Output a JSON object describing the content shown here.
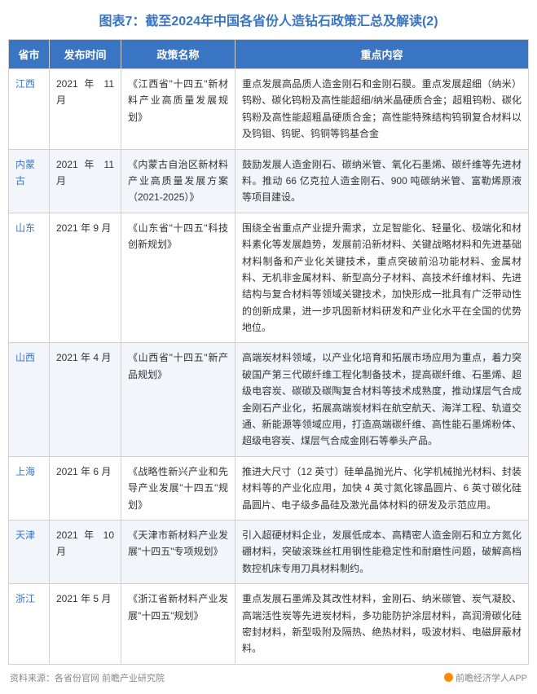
{
  "title": "图表7：截至2024年中国各省份人造钻石政策汇总及解读(2)",
  "columns": [
    "省市",
    "发布时间",
    "政策名称",
    "重点内容"
  ],
  "column_widths": [
    "50px",
    "88px",
    "140px",
    "auto"
  ],
  "header_bg": "#3a75c4",
  "header_color": "#ffffff",
  "row_even_bg": "#f2f6fb",
  "row_odd_bg": "#ffffff",
  "title_color": "#3a75c4",
  "province_color": "#3a75c4",
  "rows": [
    {
      "province": "江西",
      "date": "2021 年 11 月",
      "policy": "《江西省\"十四五\"新材料产业高质量发展规划》",
      "content": "重点发展高品质人造金刚石和金刚石膜。重点发展超细（纳米）钨粉、碳化钨粉及高性能超细/纳米晶硬质合金；超粗钨粉、碳化钨粉及高性能超粗晶硬质合金；高性能特殊结构钨钢复合材料以及钨钼、钨铌、钨铜等钨基合金"
    },
    {
      "province": "内蒙古",
      "date": "2021 年 11 月",
      "policy": "《内蒙古自治区新材料产业高质量发展方案（2021-2025）》",
      "content": "鼓励发展人造金刚石、碳纳米管、氧化石墨烯、碳纤维等先进材料。推动 66 亿克拉人造金刚石、900 吨碳纳米管、富勒烯原液等项目建设。"
    },
    {
      "province": "山东",
      "date": "2021 年 9 月",
      "policy": "《山东省\"十四五\"科技创新规划》",
      "content": "围绕全省重点产业提升需求，立足智能化、轻量化、极端化和材料素化等发展趋势，发展前沿新材料、关键战略材料和先进基础材料制备和产业化关键技术，重点突破前沿功能材料、金属材料、无机非金属材料、新型高分子材料、高技术纤维材料、先进结构与复合材料等领域关键技术，加快形成一批具有广泛带动性的创新成果，进一步巩固新材料研发和产业化水平在全国的优势地位。"
    },
    {
      "province": "山西",
      "date": "2021 年 4 月",
      "policy": "《山西省\"十四五\"新产品规划》",
      "content": "高端炭材料领域，以产业化培育和拓展市场应用为重点，着力突破国产第三代碳纤维工程化制备技术，提高碳纤维、石墨烯、超级电容炭、碳碳及碳陶复合材料等技术成熟度，推动煤层气合成金刚石产业化，拓展高端炭材料在航空航天、海洋工程、轨道交通、新能源等领域应用，打造高端碳纤维、高性能石墨烯粉体、超级电容炭、煤层气合成金刚石等拳头产品。"
    },
    {
      "province": "上海",
      "date": "2021 年 6 月",
      "policy": "《战略性新兴产业和先导产业发展\"十四五\"规划》",
      "content": "推进大尺寸（12 英寸）硅单晶抛光片、化学机械抛光材料、封装材料等的产业化应用，加快 4 英寸氮化镓晶圆片、6 英寸碳化硅晶圆片、电子级多晶硅及激光晶体材料的研发及示范应用。"
    },
    {
      "province": "天津",
      "date": "2021 年 10 月",
      "policy": "《天津市新材料产业发展\"十四五\"专项规划》",
      "content": "引入超硬材料企业，发展低成本、高精密人造金刚石和立方氮化硼材料，突破滚珠丝杠用钢性能稳定性和耐磨性问题，破解高档数控机床专用刀具材料制约。"
    },
    {
      "province": "浙江",
      "date": "2021 年 5 月",
      "policy": "《浙江省新材料产业发展\"十四五\"规划》",
      "content": "重点发展石墨烯及其改性材料，金刚石、纳米碳管、炭气凝胶、高端活性炭等先进炭材料，多功能防护涂层材料，高润滑碳化硅密封材料，新型吸附及隔热、绝热材料，吸波材料、电磁屏蔽材料。"
    }
  ],
  "footer_left": "资料来源：各省份官网 前瞻产业研究院",
  "footer_right": "前瞻经济学人APP"
}
